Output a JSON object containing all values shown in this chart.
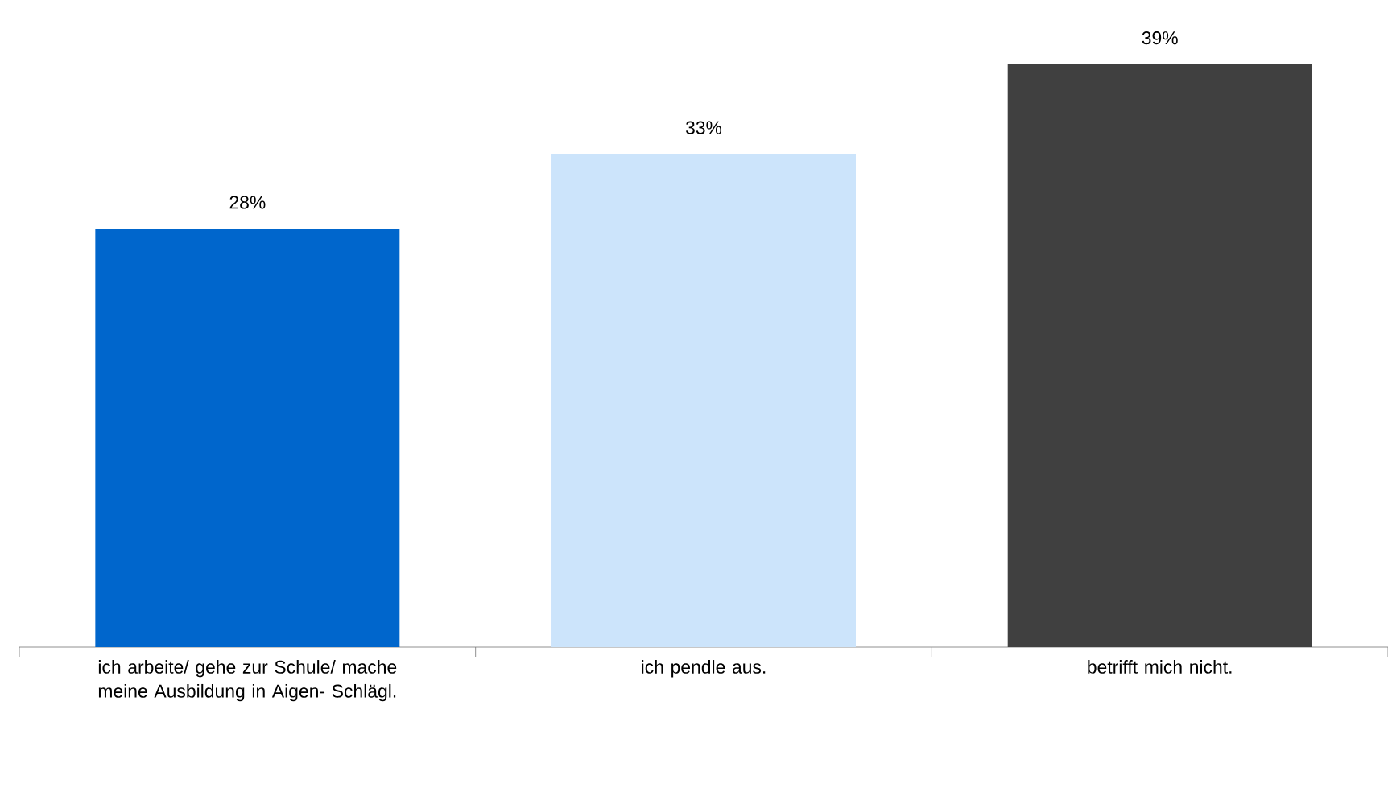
{
  "chart_data": {
    "type": "bar",
    "categories": [
      "ich arbeite/ gehe zur Schule/ mache meine Ausbildung in Aigen- Schlägl.",
      "ich pendle aus.",
      "betrifft mich nicht."
    ],
    "values": [
      28,
      33,
      39
    ],
    "colors": [
      "#0066cc",
      "#cce4fb",
      "#404040"
    ],
    "value_labels": [
      "28%",
      "33%",
      "39%"
    ]
  }
}
